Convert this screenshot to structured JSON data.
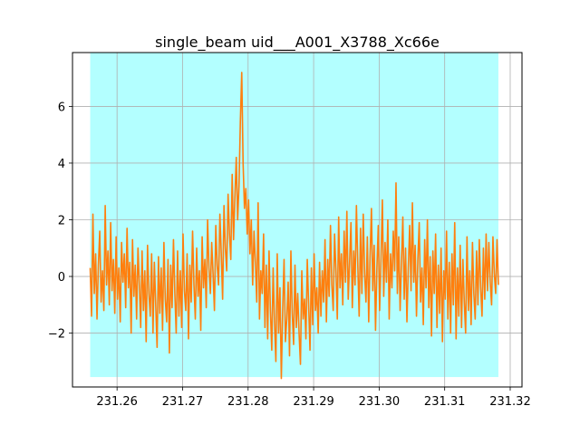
{
  "chart_data": {
    "type": "line",
    "title": "single_beam uid___A001_X3788_Xc66e",
    "xlabel": "",
    "ylabel": "",
    "xlim": [
      231.2532,
      231.3218
    ],
    "ylim": [
      -3.9,
      7.9
    ],
    "grid": true,
    "x_ticks": [
      {
        "value": 231.26,
        "label": "231.26"
      },
      {
        "value": 231.27,
        "label": "231.27"
      },
      {
        "value": 231.28,
        "label": "231.28"
      },
      {
        "value": 231.29,
        "label": "231.29"
      },
      {
        "value": 231.3,
        "label": "231.30"
      },
      {
        "value": 231.31,
        "label": "231.31"
      },
      {
        "value": 231.32,
        "label": "231.32"
      }
    ],
    "y_ticks": [
      {
        "value": -2,
        "label": "−2"
      },
      {
        "value": 0,
        "label": "0"
      },
      {
        "value": 2,
        "label": "2"
      },
      {
        "value": 4,
        "label": "4"
      },
      {
        "value": 6,
        "label": "6"
      }
    ],
    "shaded_region": {
      "x": [
        231.2559,
        231.3182
      ],
      "y": [
        -3.55,
        7.9
      ],
      "color": "#b3ffff"
    },
    "series": [
      {
        "color": "#ff7f0e",
        "x_start": 231.2559,
        "x_end": 231.3182,
        "values": [
          0.3,
          -1.4,
          2.2,
          -0.6,
          0.8,
          -1.5,
          0.4,
          1.6,
          -0.9,
          0.2,
          -1.2,
          2.5,
          -0.3,
          0.9,
          -1.0,
          1.9,
          -0.5,
          0.6,
          -1.3,
          1.4,
          -0.8,
          0.3,
          -1.6,
          1.2,
          -0.2,
          0.8,
          -1.1,
          1.7,
          -0.4,
          0.5,
          -2.0,
          1.3,
          -0.7,
          0.4,
          -1.5,
          1.0,
          -0.3,
          -1.8,
          0.9,
          -1.2,
          0.2,
          -2.3,
          1.1,
          -0.6,
          -1.4,
          0.8,
          -2.0,
          0.5,
          -1.0,
          -2.5,
          0.7,
          -1.3,
          0.3,
          -1.9,
          1.2,
          -0.8,
          -1.6,
          0.6,
          -2.7,
          0.4,
          -1.1,
          1.3,
          -0.6,
          -2.0,
          0.9,
          -1.4,
          0.2,
          -1.8,
          1.5,
          -0.5,
          -1.2,
          0.8,
          -2.2,
          0.4,
          -0.9,
          1.6,
          -0.3,
          -1.5,
          1.0,
          -0.7,
          0.2,
          -1.9,
          1.4,
          -0.4,
          0.6,
          -1.1,
          2.0,
          0.3,
          -0.6,
          1.2,
          0.1,
          -1.2,
          1.8,
          0.4,
          -0.3,
          2.2,
          0.8,
          -0.8,
          2.5,
          1.0,
          0.2,
          2.9,
          1.5,
          0.6,
          3.6,
          1.3,
          2.8,
          4.2,
          2.0,
          3.2,
          5.5,
          7.2,
          4.0,
          2.4,
          3.1,
          1.5,
          2.7,
          0.8,
          2.0,
          -0.3,
          1.6,
          0.5,
          -0.9,
          2.6,
          -1.5,
          0.2,
          -0.6,
          1.5,
          -1.8,
          0.4,
          -2.2,
          0.9,
          -1.2,
          -2.6,
          0.3,
          -1.6,
          -3.0,
          0.8,
          -2.0,
          -0.4,
          -3.6,
          -1.2,
          0.6,
          -2.3,
          -1.5,
          -0.2,
          -2.8,
          0.9,
          -1.3,
          -2.4,
          0.4,
          -1.8,
          -0.6,
          -2.0,
          -3.1,
          0.2,
          -1.5,
          -0.8,
          -2.2,
          0.6,
          -1.0,
          -2.6,
          0.3,
          -1.7,
          0.8,
          -1.2,
          -0.4,
          -2.0,
          0.5,
          -1.4,
          0.2,
          -0.9,
          1.3,
          -1.6,
          0.6,
          -0.7,
          1.8,
          -0.3,
          -1.2,
          1.5,
          0.2,
          -1.5,
          2.1,
          -0.4,
          0.8,
          -1.0,
          1.6,
          -0.2,
          2.3,
          -0.8,
          0.5,
          1.9,
          -1.1,
          0.9,
          -0.3,
          2.5,
          0.4,
          -1.4,
          1.7,
          -0.6,
          2.2,
          0.1,
          -0.9,
          1.4,
          -1.6,
          0.7,
          2.4,
          -0.5,
          1.1,
          -1.9,
          0.3,
          1.8,
          -1.2,
          0.6,
          2.7,
          -0.7,
          1.2,
          -0.2,
          2.0,
          -1.5,
          0.8,
          -0.4,
          1.6,
          0.2,
          3.3,
          -0.6,
          1.4,
          -1.2,
          0.5,
          2.1,
          -0.8,
          1.0,
          -1.6,
          0.3,
          1.8,
          -0.5,
          2.6,
          -0.2,
          1.1,
          -1.4,
          0.6,
          1.9,
          -0.9,
          0.3,
          -1.7,
          1.3,
          -0.4,
          2.0,
          -1.1,
          0.7,
          -2.1,
          0.9,
          -0.6,
          1.5,
          -1.8,
          0.4,
          -1.3,
          1.0,
          -2.3,
          0.2,
          -0.8,
          1.6,
          -1.5,
          0.5,
          -2.0,
          0.8,
          -1.0,
          1.9,
          -2.2,
          0.3,
          -1.4,
          1.1,
          -1.8,
          0.6,
          -0.9,
          -2.0,
          1.4,
          -1.2,
          0.2,
          -1.7,
          1.2,
          -0.6,
          -1.5,
          0.9,
          -1.0,
          1.3,
          -0.4,
          -1.4,
          1.0,
          -0.8,
          1.5,
          -0.5,
          1.2,
          -0.2,
          -1.0,
          1.4,
          0.1,
          -0.6,
          1.3,
          -0.3
        ]
      }
    ]
  }
}
